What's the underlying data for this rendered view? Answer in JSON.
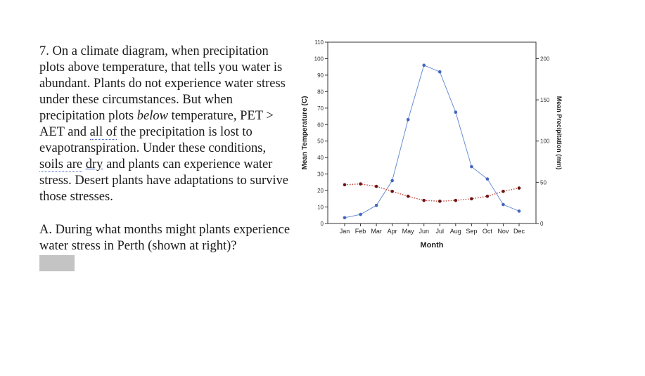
{
  "body_text": {
    "p1_a": "7. On a climate diagram, when precipitation plots above temperature, that tells you water is abundant. Plants do not experience water stress under these circumstances. But when precipitation plots ",
    "p1_em": "below",
    "p1_b": " temperature, PET > AET and ",
    "p1_dotted1": "all of",
    "p1_c": " the precipitation is lost to evapotranspiration. Under these conditions, ",
    "p1_dotted2": "soils are",
    "p1_d": " ",
    "p1_uline": "dry",
    "p1_e": " and plants can experience water stress. Desert plants have adaptations to survive those stresses.",
    "question": "A. During what months might plants experience water stress in Perth (shown at right)?"
  },
  "chart_data": {
    "type": "line",
    "xlabel": "Month",
    "ylabel": "Mean Temperature (C)",
    "y2label": "Mean Precipitation (mm)",
    "categories": [
      "Jan",
      "Feb",
      "Mar",
      "Apr",
      "May",
      "Jun",
      "Jul",
      "Aug",
      "Sep",
      "Oct",
      "Nov",
      "Dec"
    ],
    "ylim": [
      0,
      110
    ],
    "y2lim": [
      0,
      220
    ],
    "yticks": [
      0,
      10,
      20,
      30,
      40,
      50,
      60,
      70,
      80,
      90,
      100,
      110
    ],
    "y2ticks": [
      0,
      50,
      100,
      150,
      200
    ],
    "grid": false,
    "series": [
      {
        "axis": "y2",
        "style": "solid",
        "color": "#6b8ed6",
        "marker_color": "#4466bb",
        "values": [
          7,
          11,
          22,
          52,
          126,
          192,
          184,
          135,
          69,
          54,
          23,
          15
        ]
      },
      {
        "axis": "y",
        "style": "dotted",
        "color": "#c8463c",
        "marker_color": "#6e1414",
        "values": [
          23.5,
          24,
          22.5,
          19.5,
          16.5,
          14,
          13.5,
          14,
          15,
          16.5,
          19.5,
          21.5
        ]
      }
    ]
  }
}
